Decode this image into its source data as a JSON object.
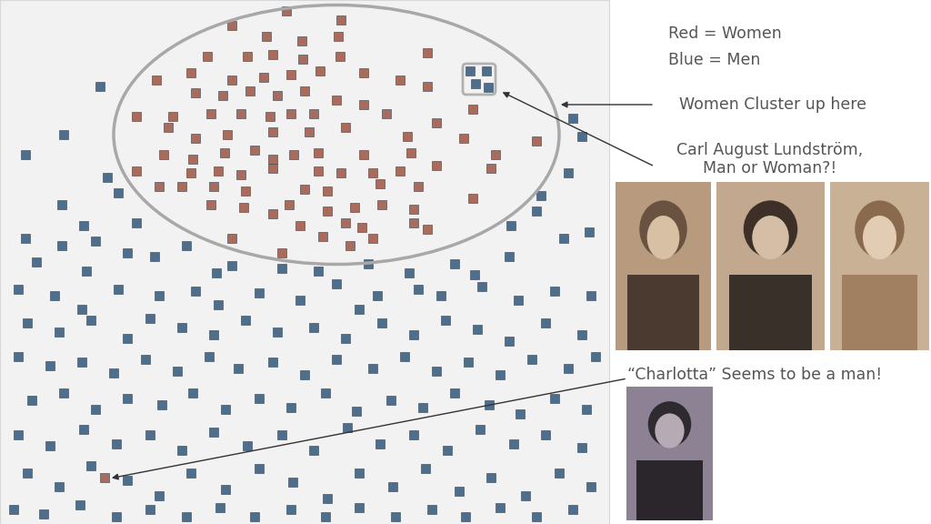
{
  "chart_data": {
    "type": "scatter",
    "xlim": [
      0,
      670
    ],
    "ylim": [
      576,
      0
    ],
    "tick_labels": false,
    "marker": "square",
    "series": [
      {
        "color": "#a86b5c",
        "x": [
          255,
          293,
          315,
          375,
          332,
          372,
          172,
          228,
          272,
          300,
          333,
          374,
          470,
          210,
          255,
          290,
          320,
          352,
          400,
          440,
          470,
          215,
          245,
          275,
          305,
          335,
          370,
          400,
          520,
          150,
          190,
          232,
          265,
          297,
          320,
          345,
          425,
          480,
          185,
          215,
          250,
          300,
          340,
          380,
          448,
          510,
          590,
          180,
          212,
          247,
          280,
          300,
          323,
          350,
          400,
          452,
          545,
          150,
          210,
          240,
          265,
          300,
          350,
          375,
          410,
          440,
          480,
          540,
          175,
          200,
          235,
          270,
          335,
          360,
          418,
          460,
          232,
          268,
          300,
          318,
          360,
          390,
          420,
          455,
          520,
          380,
          255,
          330,
          355,
          398,
          455,
          470,
          310,
          385,
          410,
          115
        ],
        "y": [
          28,
          40,
          12,
          22,
          45,
          40,
          88,
          62,
          62,
          60,
          65,
          62,
          58,
          80,
          88,
          85,
          82,
          78,
          80,
          88,
          95,
          102,
          105,
          100,
          105,
          100,
          110,
          115,
          120,
          128,
          128,
          125,
          125,
          128,
          125,
          125,
          125,
          135,
          140,
          152,
          148,
          145,
          145,
          140,
          150,
          152,
          155,
          170,
          175,
          168,
          165,
          175,
          170,
          168,
          170,
          168,
          170,
          188,
          190,
          188,
          192,
          185,
          188,
          190,
          190,
          188,
          182,
          185,
          205,
          205,
          205,
          210,
          208,
          210,
          202,
          205,
          225,
          228,
          235,
          225,
          232,
          228,
          225,
          230,
          218,
          245,
          262,
          248,
          260,
          250,
          245,
          252,
          278,
          270,
          262,
          525
        ]
      },
      {
        "color": "#4e6e8e",
        "x": [
          110,
          70,
          68,
          28,
          118,
          130,
          150,
          92,
          105,
          28,
          68,
          630,
          625,
          595,
          640,
          517,
          535,
          523,
          537,
          140,
          170,
          205,
          40,
          95,
          255,
          238,
          310,
          350,
          405,
          450,
          500,
          522,
          560,
          620,
          648,
          562,
          590,
          20,
          60,
          90,
          130,
          175,
          215,
          240,
          285,
          330,
          370,
          415,
          460,
          485,
          530,
          570,
          610,
          650,
          395,
          30,
          65,
          100,
          140,
          165,
          200,
          235,
          270,
          305,
          345,
          380,
          420,
          455,
          490,
          525,
          560,
          600,
          640,
          20,
          55,
          90,
          125,
          160,
          195,
          230,
          262,
          300,
          335,
          370,
          410,
          445,
          480,
          515,
          550,
          585,
          625,
          655,
          35,
          70,
          105,
          140,
          178,
          212,
          248,
          285,
          320,
          358,
          392,
          430,
          465,
          500,
          538,
          572,
          610,
          645,
          20,
          55,
          92,
          128,
          165,
          200,
          235,
          272,
          310,
          345,
          382,
          418,
          455,
          492,
          528,
          565,
          600,
          640,
          30,
          65,
          100,
          140,
          175,
          210,
          248,
          285,
          322,
          360,
          395,
          432,
          468,
          505,
          540,
          578,
          615,
          650,
          15,
          48,
          88,
          128,
          165,
          205,
          242,
          280,
          320,
          358,
          395,
          435,
          475,
          512,
          550,
          590,
          630
        ],
        "y": [
          95,
          148,
          225,
          170,
          195,
          212,
          245,
          248,
          265,
          262,
          270,
          130,
          190,
          215,
          150,
          78,
          78,
          92,
          96,
          278,
          282,
          270,
          288,
          298,
          292,
          300,
          295,
          298,
          290,
          300,
          290,
          302,
          282,
          262,
          255,
          248,
          232,
          318,
          325,
          340,
          318,
          325,
          320,
          335,
          322,
          330,
          312,
          325,
          318,
          325,
          315,
          330,
          320,
          325,
          340,
          355,
          365,
          352,
          372,
          350,
          360,
          368,
          352,
          365,
          360,
          372,
          355,
          368,
          352,
          362,
          375,
          355,
          368,
          392,
          402,
          398,
          410,
          395,
          408,
          392,
          405,
          398,
          412,
          395,
          405,
          392,
          408,
          398,
          412,
          395,
          405,
          392,
          440,
          432,
          450,
          438,
          445,
          432,
          450,
          438,
          448,
          432,
          452,
          440,
          448,
          432,
          445,
          455,
          438,
          450,
          478,
          490,
          472,
          488,
          478,
          495,
          475,
          490,
          478,
          495,
          470,
          488,
          478,
          495,
          472,
          488,
          478,
          492,
          520,
          535,
          512,
          528,
          545,
          520,
          538,
          515,
          530,
          548,
          520,
          535,
          515,
          540,
          525,
          545,
          520,
          535,
          560,
          565,
          555,
          568,
          560,
          568,
          558,
          568,
          560,
          568,
          558,
          568,
          560,
          568,
          558,
          568,
          560
        ]
      }
    ],
    "annotations": [
      "Red = Women",
      "Blue = Men",
      "Women Cluster up here",
      "Carl August Lundström,\nMan or Woman?!",
      "“Charlotta” Seems to be a man!"
    ]
  }
}
